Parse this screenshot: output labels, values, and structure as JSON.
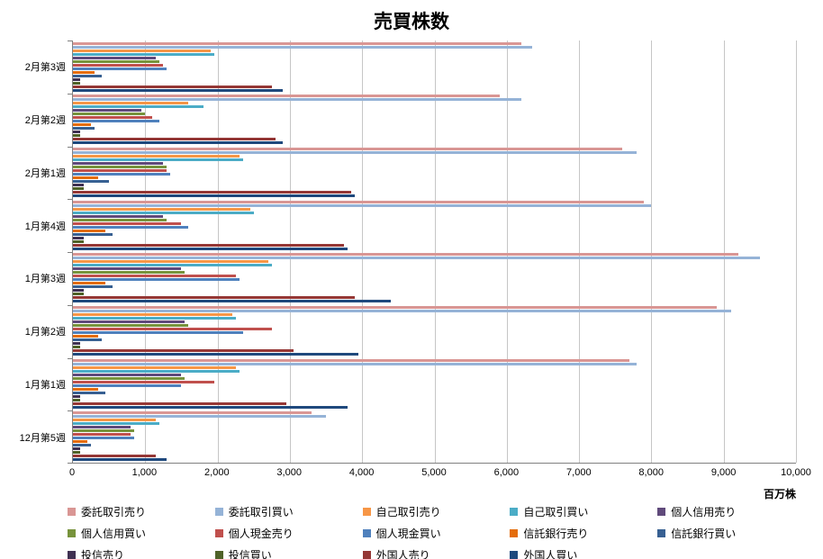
{
  "chart_data": {
    "type": "bar",
    "orientation": "horizontal",
    "title": "売買株数",
    "unit_label": "百万株",
    "legend_position": "bottom",
    "grid": true,
    "xlim": [
      0,
      10000
    ],
    "x_ticks": [
      0,
      1000,
      2000,
      3000,
      4000,
      5000,
      6000,
      7000,
      8000,
      9000,
      10000
    ],
    "x_tick_labels": [
      "0",
      "1,000",
      "2,000",
      "3,000",
      "4,000",
      "5,000",
      "6,000",
      "7,000",
      "8,000",
      "9,000",
      "10,000"
    ],
    "categories": [
      "2月第3週",
      "2月第2週",
      "2月第1週",
      "1月第4週",
      "1月第3週",
      "1月第2週",
      "1月第1週",
      "12月第5週"
    ],
    "series": [
      {
        "name": "委託取引売り",
        "color": "#d99694",
        "values": [
          6200,
          5900,
          7600,
          7900,
          9200,
          8900,
          7700,
          3300
        ]
      },
      {
        "name": "委託取引買い",
        "color": "#95b3d7",
        "values": [
          6350,
          6200,
          7800,
          8000,
          9500,
          9100,
          7800,
          3500
        ]
      },
      {
        "name": "自己取引売り",
        "color": "#f79646",
        "values": [
          1900,
          1600,
          2300,
          2450,
          2700,
          2200,
          2250,
          1150
        ]
      },
      {
        "name": "自己取引買い",
        "color": "#4bacc6",
        "values": [
          1950,
          1800,
          2350,
          2500,
          2750,
          2250,
          2300,
          1200
        ]
      },
      {
        "name": "個人信用売り",
        "color": "#604a7b",
        "values": [
          1150,
          950,
          1250,
          1250,
          1500,
          1550,
          1500,
          800
        ]
      },
      {
        "name": "個人信用買い",
        "color": "#77933c",
        "values": [
          1200,
          1000,
          1300,
          1300,
          1550,
          1600,
          1550,
          850
        ]
      },
      {
        "name": "個人現金売り",
        "color": "#c0504d",
        "values": [
          1250,
          1100,
          1300,
          1500,
          2250,
          2750,
          1950,
          800
        ]
      },
      {
        "name": "個人現金買い",
        "color": "#4f81bd",
        "values": [
          1300,
          1200,
          1350,
          1600,
          2300,
          2350,
          1500,
          850
        ]
      },
      {
        "name": "信託銀行売り",
        "color": "#e46c0a",
        "values": [
          300,
          250,
          350,
          450,
          450,
          350,
          350,
          200
        ]
      },
      {
        "name": "信託銀行買い",
        "color": "#376092",
        "values": [
          400,
          300,
          500,
          550,
          550,
          400,
          450,
          250
        ]
      },
      {
        "name": "投信売り",
        "color": "#403152",
        "values": [
          100,
          100,
          150,
          150,
          150,
          100,
          100,
          100
        ]
      },
      {
        "name": "投信買い",
        "color": "#4f6228",
        "values": [
          100,
          100,
          150,
          150,
          150,
          100,
          100,
          100
        ]
      },
      {
        "name": "外国人売り",
        "color": "#953735",
        "values": [
          2750,
          2800,
          3850,
          3750,
          3900,
          3050,
          2950,
          1150
        ]
      },
      {
        "name": "外国人買い",
        "color": "#1f497d",
        "values": [
          2900,
          2900,
          3900,
          3800,
          4400,
          3950,
          3800,
          1300
        ]
      }
    ]
  }
}
